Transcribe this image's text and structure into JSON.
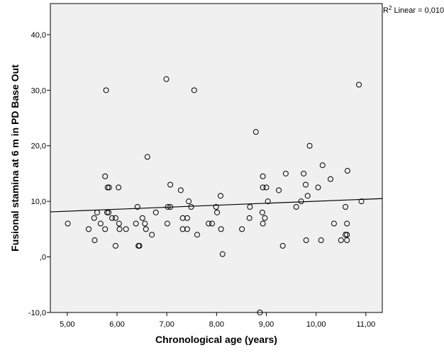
{
  "chart_data": {
    "type": "scatter",
    "x_label": "Chronological age (years)",
    "y_label": "Fusional stamina at 6 m in PD Base Out",
    "annotation": {
      "base": "R",
      "sup": "2",
      "rest": " Linear = 0,010"
    },
    "xlim": [
      4.66,
      11.33
    ],
    "ylim": [
      -10,
      45.6
    ],
    "xticks": [
      {
        "value": 5,
        "label": "5,00"
      },
      {
        "value": 6,
        "label": "6,00"
      },
      {
        "value": 7,
        "label": "7,00"
      },
      {
        "value": 8,
        "label": "8,00"
      },
      {
        "value": 9,
        "label": "9,00"
      },
      {
        "value": 10,
        "label": "10,00"
      },
      {
        "value": 11,
        "label": "11,00"
      }
    ],
    "yticks": [
      {
        "value": -10,
        "label": "-10,0"
      },
      {
        "value": 0,
        "label": ",0"
      },
      {
        "value": 10,
        "label": "10,0"
      },
      {
        "value": 20,
        "label": "20,0"
      },
      {
        "value": 30,
        "label": "30,0"
      },
      {
        "value": 40,
        "label": "40,0"
      }
    ],
    "x": [
      5.01,
      5.43,
      5.54,
      5.6,
      5.55,
      5.67,
      5.76,
      5.76,
      5.78,
      5.8,
      5.83,
      5.81,
      5.84,
      5.9,
      5.97,
      5.97,
      6.03,
      6.04,
      6.05,
      6.18,
      6.38,
      6.41,
      6.43,
      6.45,
      6.51,
      6.56,
      6.58,
      6.61,
      6.7,
      6.78,
      6.99,
      7.01,
      7.02,
      7.07,
      7.07,
      7.28,
      7.32,
      7.32,
      7.41,
      7.41,
      7.44,
      7.49,
      7.55,
      7.61,
      7.84,
      7.91,
      7.99,
      8.01,
      8.08,
      8.09,
      8.12,
      8.51,
      8.66,
      8.67,
      8.79,
      8.87,
      8.92,
      8.93,
      8.93,
      8.93,
      8.97,
      9.0,
      9.03,
      9.25,
      9.33,
      9.39,
      9.6,
      9.7,
      9.75,
      9.79,
      9.8,
      9.83,
      9.87,
      10.04,
      10.1,
      10.13,
      10.29,
      10.36,
      10.5,
      10.59,
      10.59,
      10.62,
      10.62,
      10.62,
      10.63,
      10.86,
      10.91
    ],
    "values": [
      6,
      5,
      7,
      8,
      3,
      6,
      5,
      14.5,
      30,
      8,
      8,
      12.5,
      12.5,
      7,
      7,
      2,
      12.5,
      6,
      5,
      5,
      6,
      9,
      2,
      2,
      7,
      6,
      5,
      18,
      4,
      8,
      32,
      6,
      9,
      9,
      13,
      12,
      5,
      7,
      5,
      7,
      10,
      9,
      30,
      4,
      6,
      6,
      9,
      8,
      11,
      5,
      0.5,
      5,
      7,
      9,
      22.5,
      -10,
      8,
      6,
      14.5,
      12.5,
      7,
      12.5,
      10,
      12,
      2,
      15,
      9,
      10,
      15,
      13,
      3,
      11,
      20,
      12.5,
      3,
      16.5,
      14,
      6,
      3,
      9,
      4,
      4,
      3,
      6,
      15.5,
      31,
      10
    ],
    "marker_color": "#000000",
    "plot_background": "#f0f0f0",
    "fit_line": {
      "x": [
        4.66,
        11.33
      ],
      "y": [
        8.1,
        10.5
      ],
      "color": "#000000"
    }
  }
}
